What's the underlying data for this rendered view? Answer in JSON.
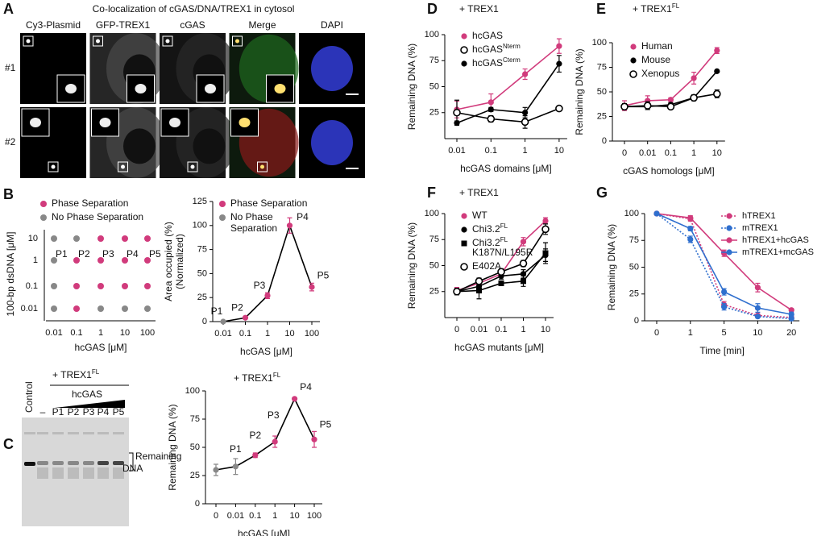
{
  "panel_a": {
    "panel": "A",
    "title": "Co-localization of cGAS/DNA/TREX1 in cytosol",
    "columns": [
      "Cy3-Plasmid",
      "GFP-TREX1",
      "cGAS",
      "Merge",
      "DAPI"
    ],
    "rows": [
      "#1",
      "#2"
    ]
  },
  "panel_c_gel": {
    "panel": "C",
    "title": "+ TREX1",
    "title_sup": "FL",
    "group_label": "hcGAS",
    "lanes": [
      "Control",
      "–",
      "P1",
      "P2",
      "P3",
      "P4",
      "P5"
    ],
    "band_label": [
      "Remaining",
      "DNA"
    ]
  },
  "chart_data": [
    {
      "type": "dot-matrix",
      "panel": "B",
      "x_categories": [
        "0.01",
        "0.1",
        "1",
        "10",
        "100"
      ],
      "y_categories": [
        "10",
        "1",
        "0.1",
        "0.01"
      ],
      "xlabel": "hcGAS [μM]",
      "ylabel": "100-bp dsDNA [μM]",
      "series": [
        {
          "name": "Phase Separation",
          "color": "#d13b7c",
          "x": [
            "1",
            "10",
            "100",
            "0.1",
            "1",
            "10",
            "100",
            "0.1",
            "1",
            "10",
            "100",
            "0.1"
          ],
          "y": [
            "10",
            "10",
            "10",
            "1",
            "1",
            "1",
            "1",
            "0.1",
            "0.1",
            "0.1",
            "0.1",
            "0.01"
          ]
        },
        {
          "name": "No Phase Separation",
          "color": "#888888",
          "x": [
            "0.01",
            "0.1",
            "0.01",
            "0.01",
            "0.01",
            "1",
            "10",
            "100"
          ],
          "y": [
            "10",
            "10",
            "1",
            "0.1",
            "0.01",
            "0.01",
            "0.01",
            "0.01"
          ]
        }
      ],
      "annotations": [
        {
          "text": "P1",
          "x": "0.01",
          "y": "1"
        },
        {
          "text": "P2",
          "x": "0.1",
          "y": "1"
        },
        {
          "text": "P3",
          "x": "1",
          "y": "1"
        },
        {
          "text": "P4",
          "x": "10",
          "y": "1"
        },
        {
          "text": "P5",
          "x": "100",
          "y": "1"
        }
      ]
    },
    {
      "type": "line",
      "categories": [
        "0.01",
        "0.1",
        "1",
        "10",
        "100"
      ],
      "values": [
        0,
        4,
        27,
        100,
        36
      ],
      "errors": [
        0,
        1,
        3,
        8,
        4
      ],
      "color": "#000000",
      "point_colors": [
        "#888888",
        "#d13b7c",
        "#d13b7c",
        "#d13b7c",
        "#d13b7c"
      ],
      "legend_entries": [
        {
          "name": [
            "Phase Separation"
          ],
          "color": "#d13b7c"
        },
        {
          "name": [
            "No Phase",
            "Separation"
          ],
          "color": "#888888"
        }
      ],
      "xlabel": "hcGAS [μM]",
      "ylabel": [
        "Area occupied (%)",
        "(Normalized)"
      ],
      "ylim": [
        0,
        125
      ],
      "yticks": [
        0,
        25,
        50,
        75,
        100,
        125
      ],
      "annotations": [
        {
          "text": "P1",
          "category": "0.01"
        },
        {
          "text": "P2",
          "category": "0.1"
        },
        {
          "text": "P3",
          "category": "1"
        },
        {
          "text": "P4",
          "category": "10"
        },
        {
          "text": "P5",
          "category": "100"
        }
      ]
    },
    {
      "type": "line",
      "title": "+ TREX1",
      "title_sup": "FL",
      "categories": [
        "0",
        "0.01",
        "0.1",
        "1",
        "10",
        "100"
      ],
      "values": [
        30,
        33,
        43,
        55,
        93,
        57
      ],
      "errors": [
        5,
        7,
        2,
        5,
        0,
        7
      ],
      "color": "#000000",
      "point_colors": [
        "#888888",
        "#888888",
        "#d13b7c",
        "#d13b7c",
        "#d13b7c",
        "#d13b7c"
      ],
      "xlabel": "hcGAS [μM]",
      "ylabel": [
        "Remaining DNA (%)"
      ],
      "ylim": [
        0,
        100
      ],
      "yticks": [
        0,
        25,
        50,
        75,
        100
      ],
      "annotations": [
        {
          "text": "P1",
          "category": "0.01"
        },
        {
          "text": "P2",
          "category": "0.1"
        },
        {
          "text": "P3",
          "category": "1"
        },
        {
          "text": "P4",
          "category": "10"
        },
        {
          "text": "P5",
          "category": "100"
        }
      ]
    },
    {
      "type": "line",
      "panel": "D",
      "title": "+ TREX1",
      "categories": [
        "0.01",
        "0.1",
        "1",
        "10"
      ],
      "xlabel": "hcGAS domains [μM]",
      "ylabel": [
        "Remaining DNA (%)"
      ],
      "ylim": [
        0,
        100
      ],
      "yticks": [
        25,
        50,
        75,
        100
      ],
      "series": [
        {
          "name": "hcGAS",
          "color": "#d13b7c",
          "marker": "circle",
          "values": [
            28,
            35,
            62,
            89
          ],
          "errors": [
            8,
            8,
            5,
            7
          ]
        },
        {
          "name": "hcGAS",
          "superscript": "Nterm",
          "color": "#000000",
          "marker": "open-circle",
          "values": [
            25,
            19,
            16,
            29
          ],
          "errors": [
            12,
            3,
            6,
            1
          ]
        },
        {
          "name": "hcGAS",
          "superscript": "Cterm",
          "color": "#000000",
          "marker": "circle",
          "values": [
            15,
            28,
            25,
            72
          ],
          "errors": [
            2,
            2,
            5,
            8
          ]
        }
      ]
    },
    {
      "type": "line",
      "panel": "E",
      "title": "+ TREX1",
      "title_sup": "FL",
      "categories": [
        "0",
        "0.01",
        "0.1",
        "1",
        "10"
      ],
      "xlabel": "cGAS homologs [μM]",
      "ylabel": [
        "Remaining DNA (%)"
      ],
      "ylim": [
        0,
        100
      ],
      "yticks": [
        0,
        25,
        50,
        75,
        100
      ],
      "series": [
        {
          "name": "Human",
          "color": "#d13b7c",
          "marker": "circle",
          "values": [
            36,
            41,
            42,
            64,
            92
          ],
          "errors": [
            5,
            5,
            2,
            6,
            3
          ]
        },
        {
          "name": "Mouse",
          "color": "#000000",
          "marker": "circle",
          "values": [
            35,
            35,
            37,
            44,
            71
          ],
          "errors": [
            3,
            3,
            2,
            2,
            1
          ]
        },
        {
          "name": "Xenopus",
          "color": "#000000",
          "marker": "open-circle",
          "values": [
            35,
            36,
            35,
            44,
            48
          ],
          "errors": [
            3,
            4,
            2,
            3,
            4
          ]
        }
      ]
    },
    {
      "type": "line",
      "panel": "F",
      "title": "+ TREX1",
      "categories": [
        "0",
        "0.01",
        "0.1",
        "1",
        "10"
      ],
      "xlabel": "hcGAS mutants [μM]",
      "ylabel": [
        "Remaining DNA (%)"
      ],
      "ylim": [
        0,
        100
      ],
      "yticks": [
        25,
        50,
        75,
        100
      ],
      "series": [
        {
          "name": "WT",
          "color": "#d13b7c",
          "marker": "circle",
          "values": [
            26,
            33,
            42,
            73,
            93
          ],
          "errors": [
            3,
            3,
            3,
            4,
            3
          ]
        },
        {
          "name": "Chi3.2",
          "superscript": "FL",
          "color": "#000000",
          "marker": "circle",
          "values": [
            25,
            30,
            40,
            42,
            60
          ],
          "errors": [
            3,
            4,
            3,
            4,
            6
          ]
        },
        {
          "name": "Chi3.2",
          "superscript": "FL",
          "name_line2": "K187N/L195R",
          "color": "#000000",
          "marker": "square",
          "values": [
            25,
            26,
            33,
            35,
            62
          ],
          "errors": [
            3,
            8,
            2,
            5,
            10
          ]
        },
        {
          "name": "E402A",
          "color": "#000000",
          "marker": "open-circle",
          "values": [
            25,
            35,
            44,
            52,
            85
          ],
          "errors": [
            3,
            3,
            3,
            3,
            5
          ]
        }
      ]
    },
    {
      "type": "line",
      "panel": "G",
      "categories": [
        "0",
        "1",
        "5",
        "10",
        "20"
      ],
      "xlabel": "Time [min]",
      "ylabel": [
        "Remaining DNA (%)"
      ],
      "ylim": [
        0,
        100
      ],
      "yticks": [
        0,
        25,
        50,
        75,
        100
      ],
      "series": [
        {
          "name": "hTREX1",
          "color": "#d13b7c",
          "marker": "circle",
          "dash": true,
          "values": [
            100,
            95,
            15,
            5,
            3
          ],
          "errors": [
            0,
            2,
            3,
            1,
            1
          ]
        },
        {
          "name": "mTREX1",
          "color": "#2f6fce",
          "marker": "circle",
          "dash": true,
          "values": [
            100,
            76,
            13,
            4,
            2
          ],
          "errors": [
            0,
            3,
            3,
            1,
            1
          ]
        },
        {
          "name": "hTREX1+hcGAS",
          "color": "#d13b7c",
          "marker": "circle",
          "values": [
            100,
            96,
            63,
            31,
            10
          ],
          "errors": [
            0,
            2,
            3,
            4,
            1
          ]
        },
        {
          "name": "mTREX1+mcGAS",
          "color": "#2f6fce",
          "marker": "circle",
          "values": [
            100,
            86,
            27,
            12,
            6
          ],
          "errors": [
            0,
            2,
            3,
            4,
            2
          ]
        }
      ]
    }
  ]
}
